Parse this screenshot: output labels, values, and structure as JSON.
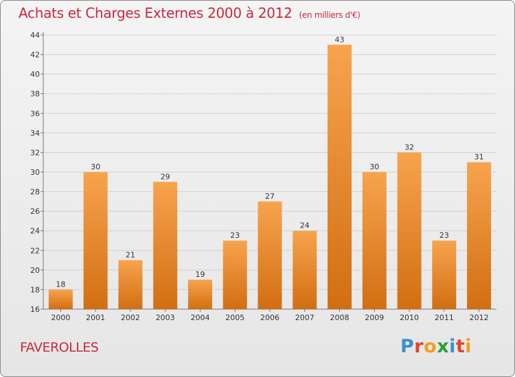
{
  "header": {
    "title": "Achats et Charges Externes 2000 à 2012",
    "unit": "(en milliers d'€)"
  },
  "footer": {
    "commune": "FAVEROLLES",
    "logo_letters": [
      "P",
      "r",
      "o",
      "x",
      "i",
      "t",
      "i"
    ],
    "logo_colors": [
      "#3a8fd0",
      "#e0452d",
      "#f0a020",
      "#2a9f3c",
      "#3a8fd0",
      "#e0452d",
      "#f0a020"
    ]
  },
  "chart_data": {
    "type": "bar",
    "categories": [
      "2000",
      "2001",
      "2002",
      "2003",
      "2004",
      "2005",
      "2006",
      "2007",
      "2008",
      "2009",
      "2010",
      "2011",
      "2012"
    ],
    "values": [
      18,
      30,
      21,
      29,
      19,
      23,
      27,
      24,
      43,
      30,
      32,
      23,
      31
    ],
    "title": "Achats et Charges Externes 2000 à 2012",
    "ylim": [
      16,
      44
    ],
    "yticks": [
      16,
      18,
      20,
      22,
      24,
      26,
      28,
      30,
      32,
      34,
      36,
      38,
      40,
      42,
      44
    ],
    "grid": true,
    "bar_color_top": "#f7a44e",
    "bar_color_bottom": "#d26e12"
  }
}
